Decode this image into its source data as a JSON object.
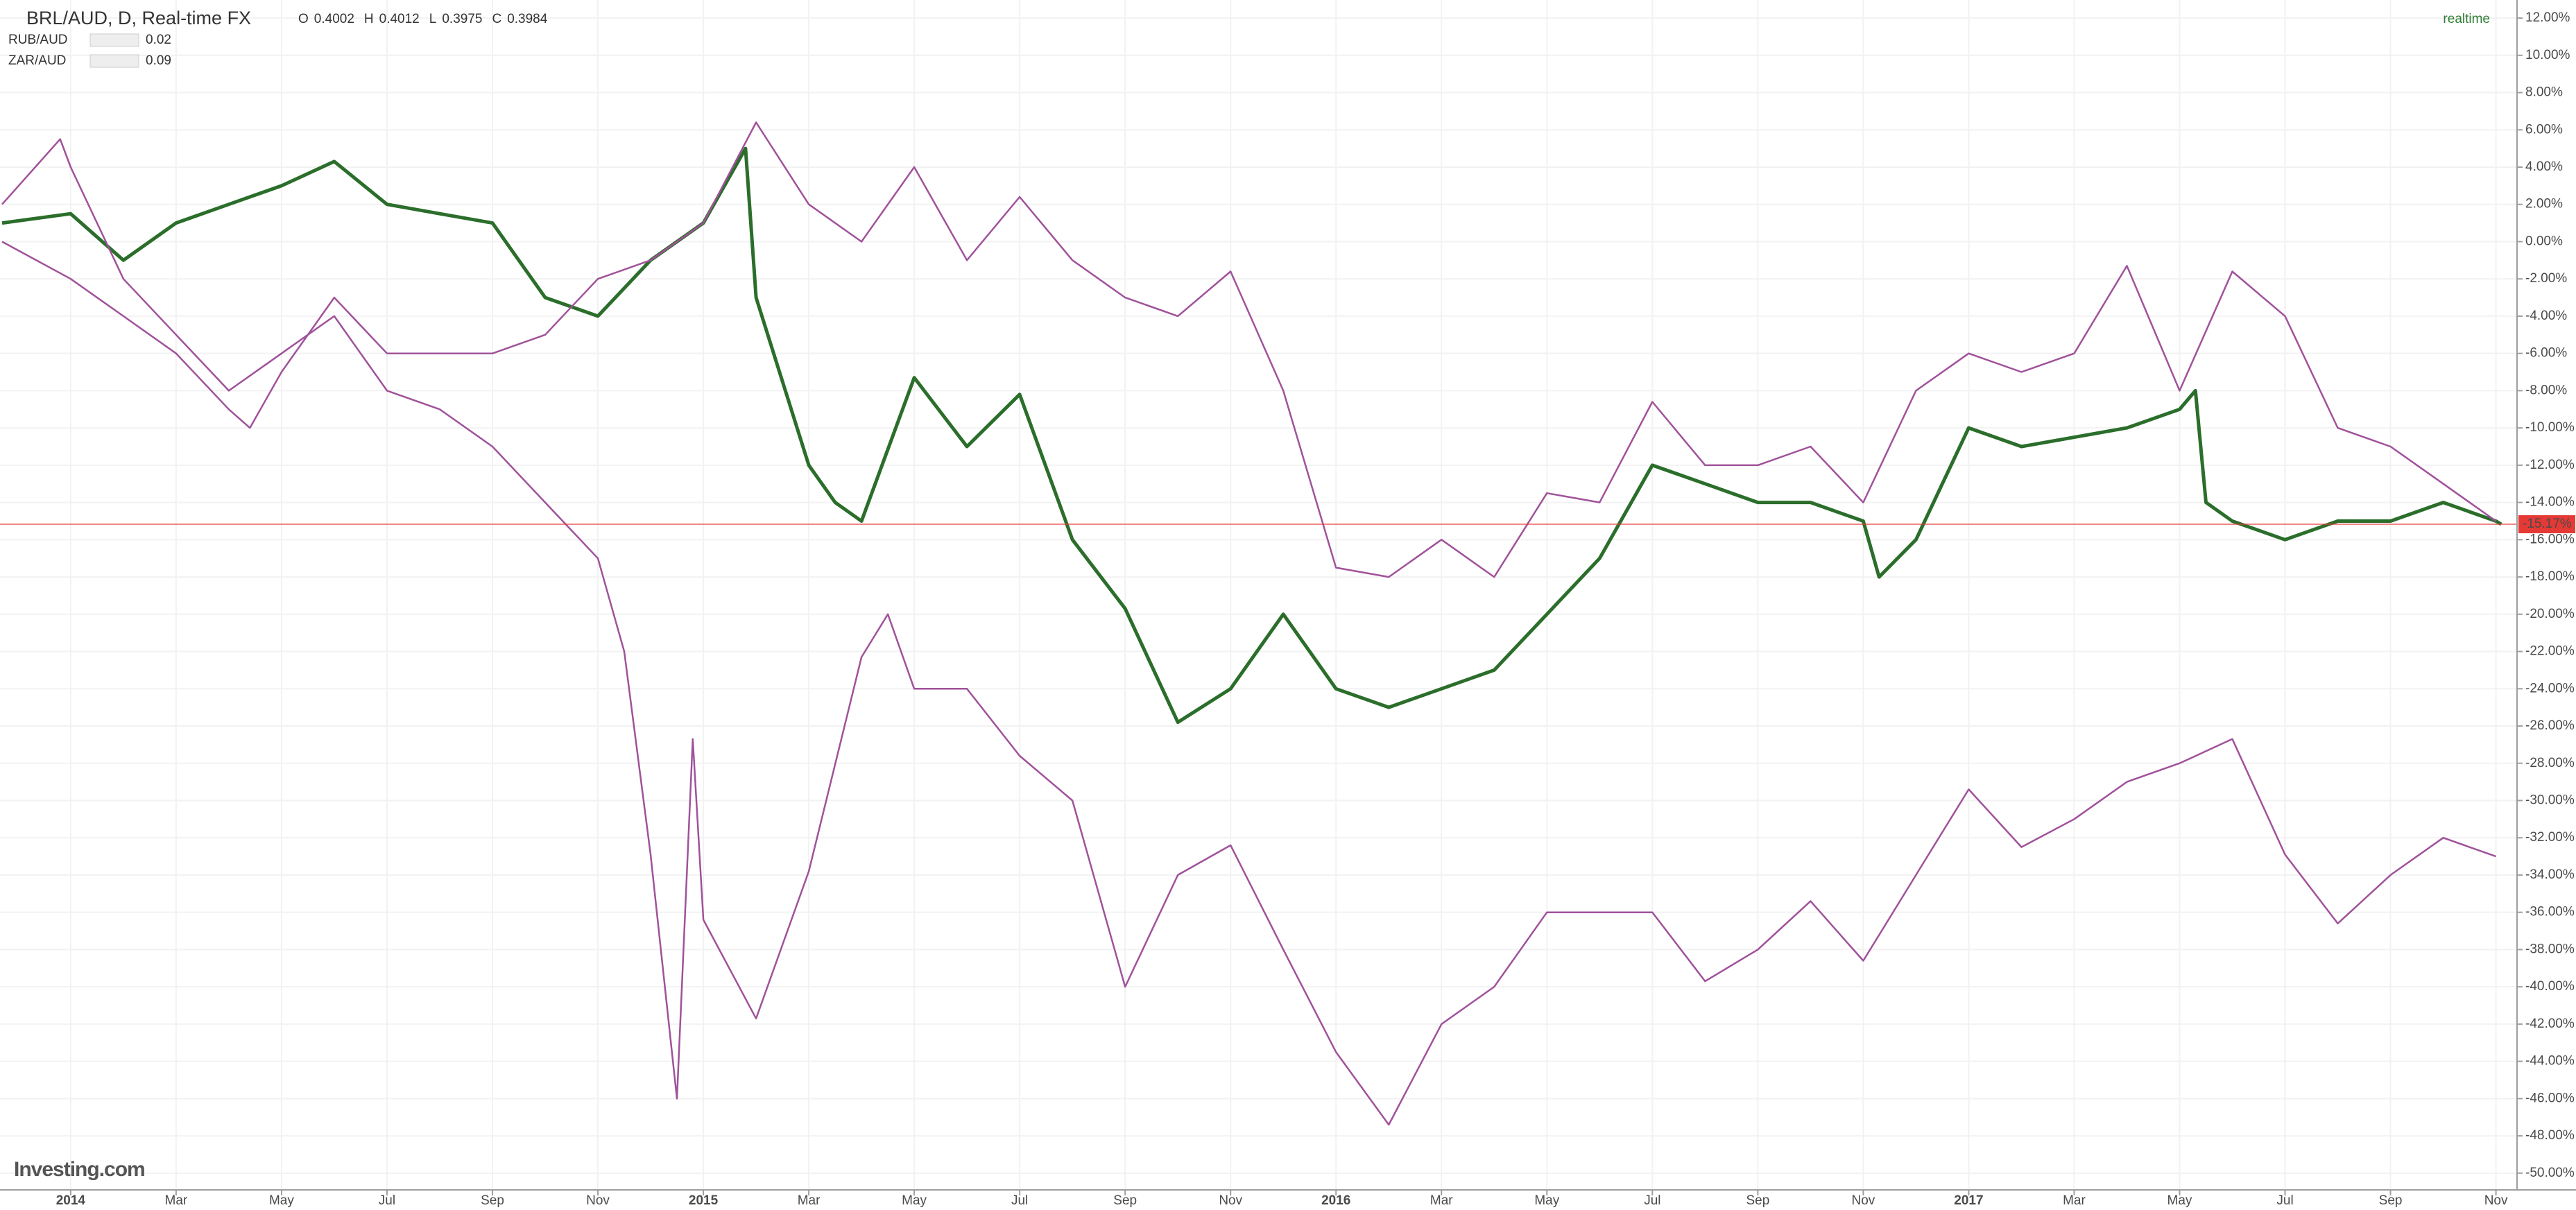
{
  "chart_data": {
    "type": "line",
    "header": {
      "symbol": "BRL/AUD, D, Real-time FX",
      "ohlc": [
        {
          "label": "O",
          "value": 0.4002
        },
        {
          "label": "H",
          "value": 0.4012
        },
        {
          "label": "L",
          "value": 0.3975
        },
        {
          "label": "C",
          "value": 0.3984
        }
      ],
      "status": "realtime"
    },
    "logo": "Investing.com",
    "xlim": [
      -1.34,
      46.4
    ],
    "xticks": [
      {
        "value": 0,
        "label": "2014"
      },
      {
        "value": 2,
        "label": "Mar"
      },
      {
        "value": 4,
        "label": "May"
      },
      {
        "value": 6,
        "label": "Jul"
      },
      {
        "value": 8,
        "label": "Sep"
      },
      {
        "value": 10,
        "label": "Nov"
      },
      {
        "value": 12,
        "label": "2015"
      },
      {
        "value": 14,
        "label": "Mar"
      },
      {
        "value": 16,
        "label": "May"
      },
      {
        "value": 18,
        "label": "Jul"
      },
      {
        "value": 20,
        "label": "Sep"
      },
      {
        "value": 22,
        "label": "Nov"
      },
      {
        "value": 24,
        "label": "2016"
      },
      {
        "value": 26,
        "label": "Mar"
      },
      {
        "value": 28,
        "label": "May"
      },
      {
        "value": 30,
        "label": "Jul"
      },
      {
        "value": 32,
        "label": "Sep"
      },
      {
        "value": 34,
        "label": "Nov"
      },
      {
        "value": 36,
        "label": "2017"
      },
      {
        "value": 38,
        "label": "Mar"
      },
      {
        "value": 40,
        "label": "May"
      },
      {
        "value": 42,
        "label": "Jul"
      },
      {
        "value": 44,
        "label": "Sep"
      },
      {
        "value": 46,
        "label": "Nov"
      }
    ],
    "ylim": [
      -50.9,
      12.97
    ],
    "yticks": [
      {
        "value": 12,
        "label": "12.00%"
      },
      {
        "value": 10,
        "label": "10.00%"
      },
      {
        "value": 8,
        "label": "8.00%"
      },
      {
        "value": 6,
        "label": "6.00%"
      },
      {
        "value": 4,
        "label": "4.00%"
      },
      {
        "value": 2,
        "label": "2.00%"
      },
      {
        "value": 0,
        "label": "0.00%"
      },
      {
        "value": -2,
        "label": "-2.00%"
      },
      {
        "value": -4,
        "label": "-4.00%"
      },
      {
        "value": -6,
        "label": "-6.00%"
      },
      {
        "value": -8,
        "label": "-8.00%"
      },
      {
        "value": -10,
        "label": "-10.00%"
      },
      {
        "value": -12,
        "label": "-12.00%"
      },
      {
        "value": -14,
        "label": "-14.00%"
      },
      {
        "value": -16,
        "label": "-16.00%"
      },
      {
        "value": -18,
        "label": "-18.00%"
      },
      {
        "value": -20,
        "label": "-20.00%"
      },
      {
        "value": -22,
        "label": "-22.00%"
      },
      {
        "value": -24,
        "label": "-24.00%"
      },
      {
        "value": -26,
        "label": "-26.00%"
      },
      {
        "value": -28,
        "label": "-28.00%"
      },
      {
        "value": -30,
        "label": "-30.00%"
      },
      {
        "value": -32,
        "label": "-32.00%"
      },
      {
        "value": -34,
        "label": "-34.00%"
      },
      {
        "value": -36,
        "label": "-36.00%"
      },
      {
        "value": -38,
        "label": "-38.00%"
      },
      {
        "value": -40,
        "label": "-40.00%"
      },
      {
        "value": -42,
        "label": "-42.00%"
      },
      {
        "value": -44,
        "label": "-44.00%"
      },
      {
        "value": -46,
        "label": "-46.00%"
      },
      {
        "value": -48,
        "label": "-48.00%"
      },
      {
        "value": -50,
        "label": "-50.00%"
      }
    ],
    "grid": true,
    "price_line": {
      "value": -15.17,
      "label": "-15.17%",
      "color": "#e53935"
    },
    "series": [
      {
        "name": "BRL/AUD",
        "color": "#2b6e2b",
        "x": [
          -1.3,
          0,
          1,
          2,
          3,
          4,
          5,
          6,
          7,
          8,
          9,
          10,
          11,
          12,
          12.8,
          13,
          14,
          14.5,
          15,
          16,
          17,
          18,
          19,
          20,
          21,
          22,
          23,
          24,
          25,
          26,
          27,
          28,
          29,
          30,
          31,
          32,
          33,
          34,
          34.3,
          35,
          36,
          37,
          38,
          39,
          40,
          40.3,
          40.5,
          41,
          42,
          43,
          44,
          45,
          46,
          46.1
        ],
        "values": [
          1,
          1.5,
          -1,
          1,
          2,
          3,
          4.3,
          2,
          1.5,
          1,
          -3,
          -4,
          -1,
          1,
          5,
          -3,
          -12,
          -14,
          -15,
          -7.3,
          -11,
          -8.2,
          -16,
          -19.7,
          -25.8,
          -24,
          -20,
          -24,
          -25,
          -24,
          -23,
          -20,
          -17,
          -12,
          -13,
          -14,
          -14,
          -15,
          -18,
          -16,
          -10,
          -11,
          -10.5,
          -10,
          -9,
          -8,
          -14,
          -15,
          -16,
          -15,
          -15,
          -14,
          -15,
          -15.17
        ]
      },
      {
        "name": "RUB/AUD",
        "color": "#a0529a",
        "legend_value": 0.02,
        "x": [
          -1.3,
          -0.2,
          0,
          1,
          2,
          3,
          4,
          5,
          6,
          7,
          8,
          9,
          10,
          10.5,
          11,
          11.5,
          11.8,
          12,
          13,
          14,
          15,
          15.5,
          16,
          17,
          18,
          19,
          20,
          21,
          22,
          23,
          24,
          25,
          26,
          27,
          28,
          29,
          30,
          31,
          32,
          33,
          34,
          35,
          36,
          37,
          38,
          39,
          40,
          41,
          42,
          43,
          44,
          45,
          46
        ],
        "values": [
          2,
          5.5,
          4,
          -2,
          -5,
          -8,
          -6,
          -4,
          -8,
          -9,
          -11,
          -14,
          -17,
          -22,
          -32.9,
          -46,
          -26.7,
          -36.4,
          -41.7,
          -33.8,
          -22.3,
          -20,
          -24,
          -24,
          -27.6,
          -30,
          -40,
          -34,
          -32.4,
          -38,
          -43.5,
          -47.4,
          -42,
          -40,
          -36,
          -36,
          -36,
          -39.7,
          -38,
          -35.4,
          -38.6,
          -34,
          -29.4,
          -32.5,
          -31,
          -29,
          -28,
          -26.7,
          -32.9,
          -36.6,
          -34,
          -32,
          -33
        ]
      },
      {
        "name": "ZAR/AUD",
        "color": "#a0529a",
        "legend_value": 0.09,
        "x": [
          -1.3,
          0,
          1,
          2,
          3,
          3.4,
          4,
          5,
          6,
          7,
          8,
          9,
          10,
          11,
          12,
          13,
          14,
          15,
          16,
          17,
          18,
          19,
          20,
          21,
          22,
          23,
          24,
          25,
          26,
          27,
          28,
          29,
          30,
          31,
          32,
          33,
          34,
          35,
          36,
          37,
          38,
          39,
          40,
          41,
          42,
          43,
          44,
          45,
          46
        ],
        "values": [
          0,
          -2,
          -4,
          -6,
          -9,
          -10,
          -7,
          -3,
          -6,
          -6,
          -6,
          -5,
          -2,
          -1,
          1,
          6.4,
          2,
          0,
          4,
          -1,
          2.4,
          -1,
          -3,
          -4,
          -1.6,
          -8,
          -17.5,
          -18,
          -16,
          -18,
          -13.5,
          -14,
          -8.6,
          -12,
          -12,
          -11,
          -14,
          -8,
          -6,
          -7,
          -6,
          -1.3,
          -8,
          -1.6,
          -4,
          -10,
          -11,
          -13,
          -15
        ]
      }
    ]
  }
}
